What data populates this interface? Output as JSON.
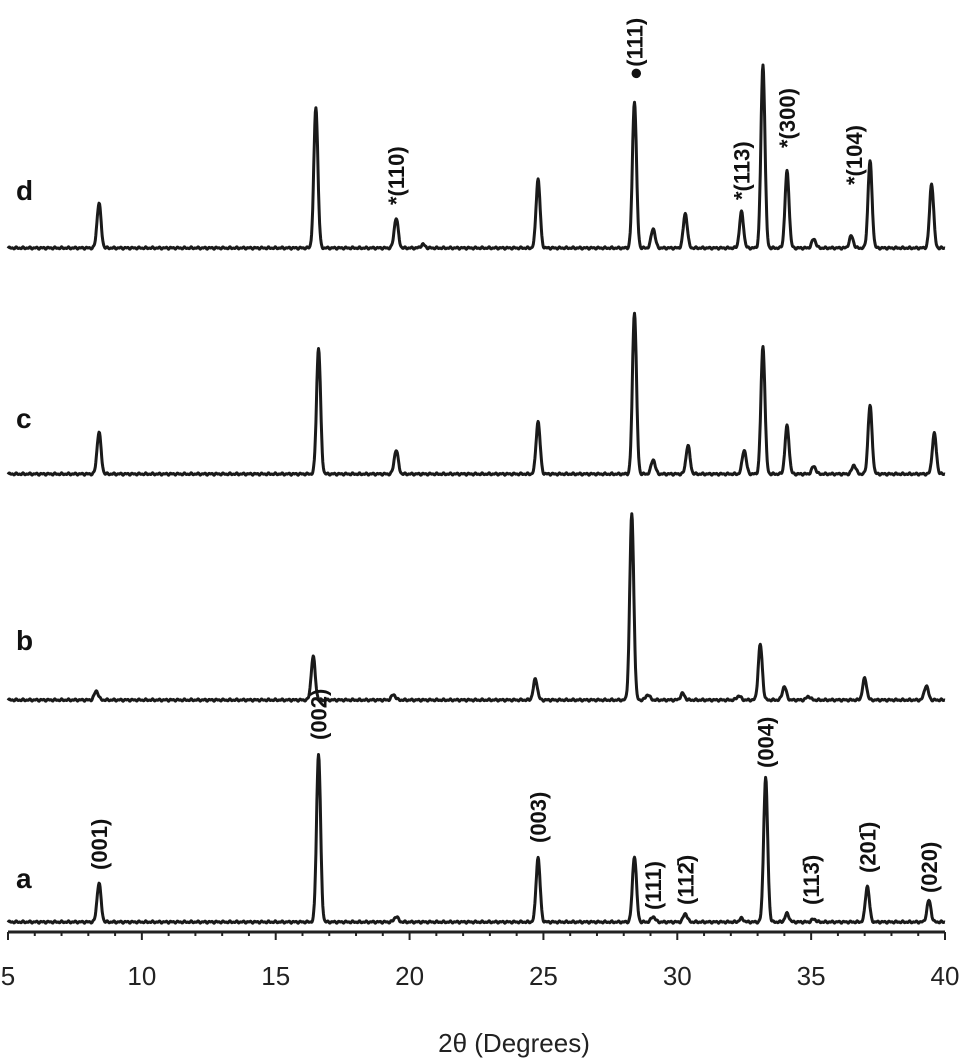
{
  "chart_data": {
    "type": "line",
    "xlabel": "2θ (Degrees)",
    "xlim": [
      5,
      40
    ],
    "x_ticks": [
      5,
      10,
      15,
      20,
      25,
      30,
      35,
      40
    ],
    "x_tick_labels": [
      "5",
      "10",
      "15",
      "20",
      "25",
      "30",
      "35",
      "40"
    ],
    "y_axis_shown": false,
    "grid": false,
    "series": [
      {
        "name": "a",
        "peaks": [
          {
            "x": 8.4,
            "h": 1.3
          },
          {
            "x": 16.6,
            "h": 5.6
          },
          {
            "x": 19.5,
            "h": 0.18
          },
          {
            "x": 24.8,
            "h": 2.15
          },
          {
            "x": 28.4,
            "h": 2.2
          },
          {
            "x": 29.1,
            "h": 0.18
          },
          {
            "x": 30.3,
            "h": 0.28
          },
          {
            "x": 32.4,
            "h": 0.12
          },
          {
            "x": 33.3,
            "h": 4.8
          },
          {
            "x": 34.1,
            "h": 0.28
          },
          {
            "x": 35.1,
            "h": 0.1
          },
          {
            "x": 37.1,
            "h": 1.2
          },
          {
            "x": 39.4,
            "h": 0.72
          }
        ]
      },
      {
        "name": "b",
        "peaks": [
          {
            "x": 8.3,
            "h": 0.3
          },
          {
            "x": 16.4,
            "h": 1.45
          },
          {
            "x": 19.4,
            "h": 0.18
          },
          {
            "x": 24.7,
            "h": 0.7
          },
          {
            "x": 28.3,
            "h": 6.2
          },
          {
            "x": 28.9,
            "h": 0.18
          },
          {
            "x": 30.2,
            "h": 0.22
          },
          {
            "x": 32.3,
            "h": 0.14
          },
          {
            "x": 33.1,
            "h": 1.85
          },
          {
            "x": 34.0,
            "h": 0.45
          },
          {
            "x": 34.9,
            "h": 0.12
          },
          {
            "x": 37.0,
            "h": 0.72
          },
          {
            "x": 39.3,
            "h": 0.48
          }
        ]
      },
      {
        "name": "c",
        "peaks": [
          {
            "x": 8.4,
            "h": 1.4
          },
          {
            "x": 16.6,
            "h": 4.2
          },
          {
            "x": 19.5,
            "h": 0.8
          },
          {
            "x": 24.8,
            "h": 1.75
          },
          {
            "x": 28.4,
            "h": 5.4
          },
          {
            "x": 29.1,
            "h": 0.48
          },
          {
            "x": 30.4,
            "h": 0.95
          },
          {
            "x": 32.5,
            "h": 0.8
          },
          {
            "x": 33.2,
            "h": 4.25
          },
          {
            "x": 34.1,
            "h": 1.6
          },
          {
            "x": 35.1,
            "h": 0.26
          },
          {
            "x": 36.6,
            "h": 0.3
          },
          {
            "x": 37.2,
            "h": 2.28
          },
          {
            "x": 39.6,
            "h": 1.35
          }
        ]
      },
      {
        "name": "d",
        "peaks": [
          {
            "x": 8.4,
            "h": 1.5
          },
          {
            "x": 16.5,
            "h": 4.7
          },
          {
            "x": 19.5,
            "h": 1.0
          },
          {
            "x": 20.5,
            "h": 0.12
          },
          {
            "x": 24.8,
            "h": 2.3
          },
          {
            "x": 28.4,
            "h": 4.9
          },
          {
            "x": 29.1,
            "h": 0.65
          },
          {
            "x": 30.3,
            "h": 1.15
          },
          {
            "x": 32.4,
            "h": 1.2
          },
          {
            "x": 33.2,
            "h": 6.1
          },
          {
            "x": 34.1,
            "h": 2.55
          },
          {
            "x": 35.1,
            "h": 0.3
          },
          {
            "x": 36.5,
            "h": 0.4
          },
          {
            "x": 37.2,
            "h": 2.9
          },
          {
            "x": 39.5,
            "h": 2.15
          }
        ]
      }
    ],
    "annotations": [
      {
        "series": "a",
        "x": 8.4,
        "text": "(001)"
      },
      {
        "series": "a",
        "x": 16.6,
        "text": "(002)"
      },
      {
        "series": "a",
        "x": 24.8,
        "text": "(003)"
      },
      {
        "series": "a",
        "x": 29.1,
        "text": "(111)"
      },
      {
        "series": "a",
        "x": 30.3,
        "text": "(112̄)"
      },
      {
        "series": "a",
        "x": 33.3,
        "text": "(004)"
      },
      {
        "series": "a",
        "x": 35.0,
        "text": "(113̄)"
      },
      {
        "series": "a",
        "x": 37.1,
        "text": "(201̄)"
      },
      {
        "series": "a",
        "x": 39.4,
        "text": "(020)"
      },
      {
        "series": "d",
        "x": 19.5,
        "text": "*(110)"
      },
      {
        "series": "d",
        "x": 28.4,
        "text": "●(111)"
      },
      {
        "series": "d",
        "x": 32.4,
        "text": "*(113)"
      },
      {
        "series": "d",
        "x": 34.1,
        "text": "*(300)"
      },
      {
        "series": "d",
        "x": 36.6,
        "text": "*(104)"
      }
    ]
  }
}
